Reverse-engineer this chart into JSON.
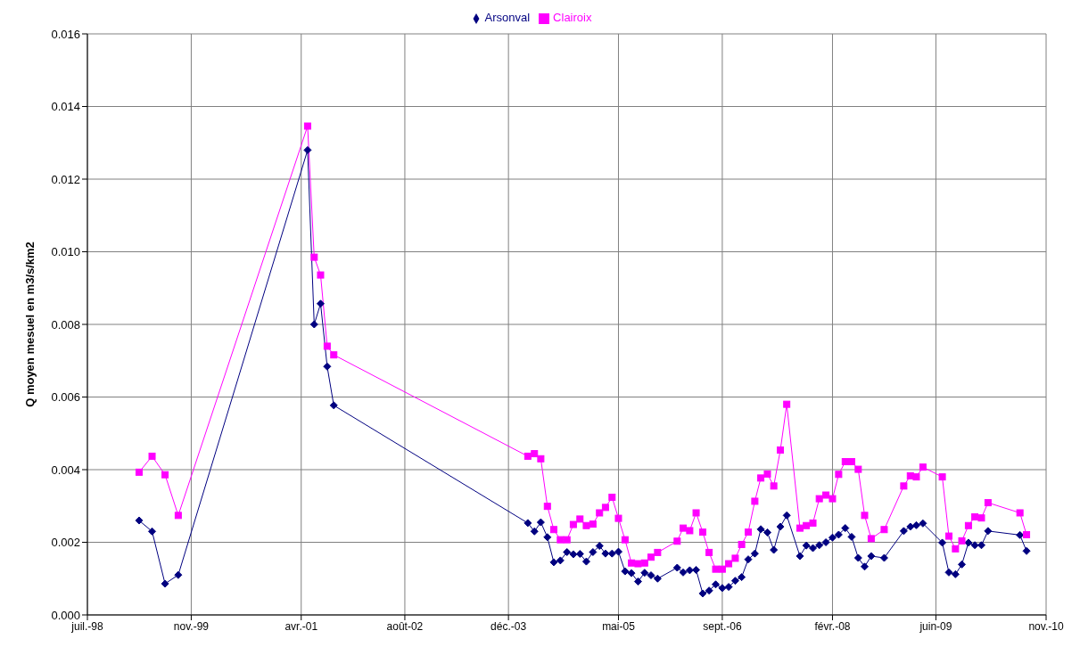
{
  "chart_data": {
    "type": "line",
    "ylabel": "Q moyen mesuel en m3/s/km2",
    "x": [
      "1999-03",
      "1999-05",
      "1999-07",
      "1999-09",
      "2001-05",
      "2001-06",
      "2001-07",
      "2001-08",
      "2001-09",
      "2004-03",
      "2004-04",
      "2004-05",
      "2004-06",
      "2004-07",
      "2004-08",
      "2004-09",
      "2004-10",
      "2004-11",
      "2004-12",
      "2005-01",
      "2005-02",
      "2005-03",
      "2005-04",
      "2005-05",
      "2005-06",
      "2005-07",
      "2005-08",
      "2005-09",
      "2005-10",
      "2005-11",
      "2006-02",
      "2006-03",
      "2006-04",
      "2006-05",
      "2006-06",
      "2006-07",
      "2006-08",
      "2006-09",
      "2006-10",
      "2006-11",
      "2006-12",
      "2007-01",
      "2007-02",
      "2007-03",
      "2007-04",
      "2007-05",
      "2007-06",
      "2007-07",
      "2007-09",
      "2007-10",
      "2007-11",
      "2007-12",
      "2008-01",
      "2008-02",
      "2008-03",
      "2008-04",
      "2008-05",
      "2008-06",
      "2008-07",
      "2008-08",
      "2008-10",
      "2009-01",
      "2009-02",
      "2009-03",
      "2009-04",
      "2009-07",
      "2009-08",
      "2009-09",
      "2009-10",
      "2009-11",
      "2009-12",
      "2010-01",
      "2010-02",
      "2010-07",
      "2010-08"
    ],
    "series": [
      {
        "name": "Arsonval",
        "color": "#000080",
        "marker": "diamond",
        "values": [
          0.0026,
          0.0023,
          0.00086,
          0.0011,
          0.0128,
          0.008,
          0.00857,
          0.00684,
          0.00577,
          0.00253,
          0.0023,
          0.00255,
          0.00214,
          0.00145,
          0.0015,
          0.00173,
          0.00167,
          0.00168,
          0.00147,
          0.00173,
          0.0019,
          0.00169,
          0.00169,
          0.00174,
          0.0012,
          0.00115,
          0.00092,
          0.00116,
          0.00109,
          0.001,
          0.0013,
          0.00117,
          0.00123,
          0.00124,
          0.00059,
          0.00067,
          0.00084,
          0.00074,
          0.00077,
          0.00094,
          0.00104,
          0.00153,
          0.00169,
          0.00236,
          0.00227,
          0.00179,
          0.00243,
          0.00274,
          0.00162,
          0.00191,
          0.00184,
          0.00192,
          0.002,
          0.00213,
          0.00221,
          0.00239,
          0.00215,
          0.00157,
          0.00133,
          0.00162,
          0.00157,
          0.00231,
          0.00243,
          0.00247,
          0.00252,
          0.00199,
          0.00117,
          0.00112,
          0.00139,
          0.00199,
          0.00192,
          0.00192,
          0.00231,
          0.0022,
          0.00176
        ]
      },
      {
        "name": "Clairoix",
        "color": "#ff00ff",
        "marker": "square",
        "values": [
          0.00393,
          0.00437,
          0.00386,
          0.00274,
          0.01346,
          0.00985,
          0.00936,
          0.0074,
          0.00716,
          0.00437,
          0.00444,
          0.0043,
          0.00299,
          0.00235,
          0.00207,
          0.00207,
          0.00249,
          0.00264,
          0.00246,
          0.0025,
          0.00281,
          0.00296,
          0.00324,
          0.00266,
          0.00207,
          0.00143,
          0.00141,
          0.00143,
          0.00159,
          0.00172,
          0.00203,
          0.00239,
          0.00232,
          0.00281,
          0.00228,
          0.00172,
          0.00126,
          0.00126,
          0.00141,
          0.00156,
          0.00194,
          0.00228,
          0.00313,
          0.00377,
          0.00388,
          0.00355,
          0.00454,
          0.0058,
          0.00239,
          0.00246,
          0.00253,
          0.0032,
          0.0033,
          0.0032,
          0.00387,
          0.00422,
          0.00422,
          0.00401,
          0.00274,
          0.0021,
          0.00235,
          0.00355,
          0.00383,
          0.0038,
          0.00407,
          0.0038,
          0.00217,
          0.00182,
          0.00204,
          0.00246,
          0.0027,
          0.00267,
          0.00309,
          0.00281,
          0.00221
        ]
      }
    ],
    "xlim": [
      "1998-07",
      "2010-11"
    ],
    "xticks": [
      {
        "value": "1998-07",
        "label": "juil.-98"
      },
      {
        "value": "1999-11",
        "label": "nov.-99"
      },
      {
        "value": "2001-04",
        "label": "avr.-01"
      },
      {
        "value": "2002-08",
        "label": "août-02"
      },
      {
        "value": "2003-12",
        "label": "déc.-03"
      },
      {
        "value": "2005-05",
        "label": "mai-05"
      },
      {
        "value": "2006-09",
        "label": "sept.-06"
      },
      {
        "value": "2008-02",
        "label": "févr.-08"
      },
      {
        "value": "2009-06",
        "label": "juin-09"
      },
      {
        "value": "2010-11",
        "label": "nov.-10"
      }
    ],
    "ylim": [
      0,
      0.016
    ],
    "yticks": [
      {
        "value": 0,
        "label": "0.000"
      },
      {
        "value": 0.002,
        "label": "0.002"
      },
      {
        "value": 0.004,
        "label": "0.004"
      },
      {
        "value": 0.006,
        "label": "0.006"
      },
      {
        "value": 0.008,
        "label": "0.008"
      },
      {
        "value": 0.01,
        "label": "0.010"
      },
      {
        "value": 0.012,
        "label": "0.012"
      },
      {
        "value": 0.014,
        "label": "0.014"
      },
      {
        "value": 0.016,
        "label": "0.016"
      }
    ],
    "grid": true,
    "legend": "top",
    "line_style": "solid"
  }
}
